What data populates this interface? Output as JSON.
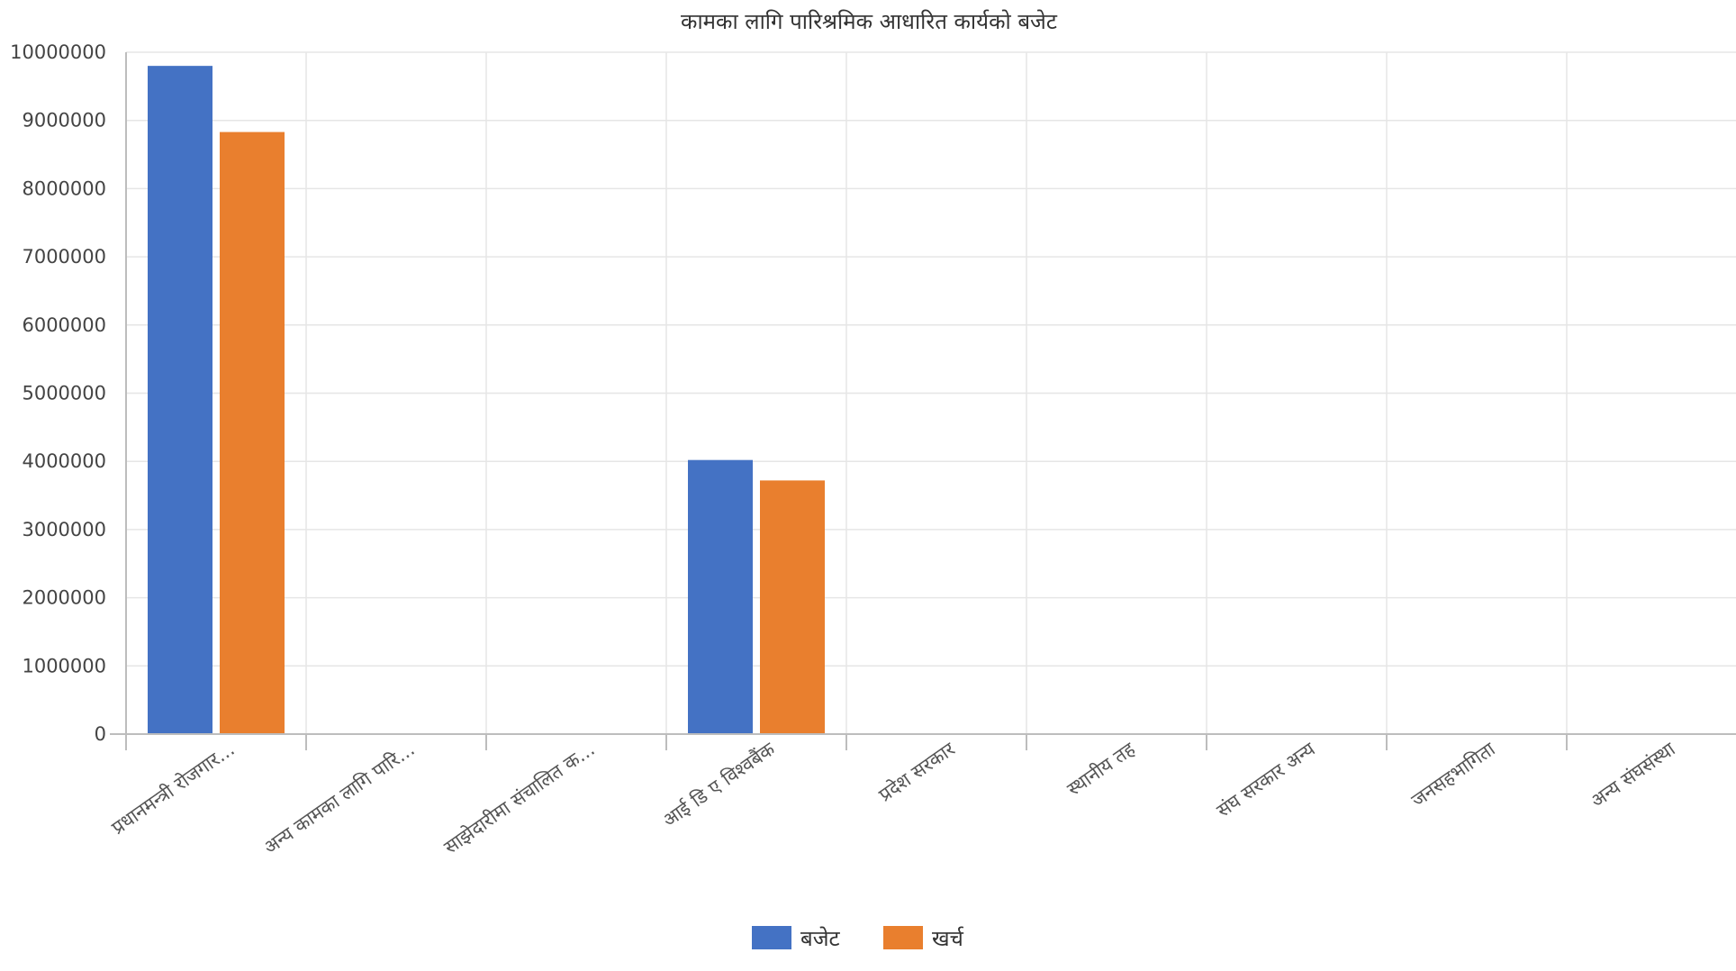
{
  "chart_data": {
    "type": "bar",
    "title": "कामका लागि पारिश्रमिक आधारित कार्यको बजेट",
    "categories": [
      "प्रधानमन्त्री रोजगार...",
      "अन्य कामका लागि पारि...",
      "साझेदारीमा संचालित क...",
      "आई डि ए विश्वबैंक",
      "प्रदेश सरकार",
      "स्थानीय तह",
      "संघ सरकार अन्य",
      "जनसहभागिता",
      "अन्य संघसंस्था"
    ],
    "series": [
      {
        "name": "बजेट",
        "color": "#4472c4",
        "values": [
          9800000,
          0,
          0,
          4020000,
          0,
          0,
          0,
          0,
          0
        ]
      },
      {
        "name": "खर्च",
        "color": "#e97f2e",
        "values": [
          8830000,
          0,
          0,
          3720000,
          0,
          0,
          0,
          0,
          0
        ]
      }
    ],
    "ylim": [
      0,
      10000000
    ],
    "yticks": [
      "0",
      "1000000",
      "2000000",
      "3000000",
      "4000000",
      "5000000",
      "6000000",
      "7000000",
      "8000000",
      "9000000",
      "10000000"
    ],
    "grid": true,
    "legend_position": "bottom"
  }
}
